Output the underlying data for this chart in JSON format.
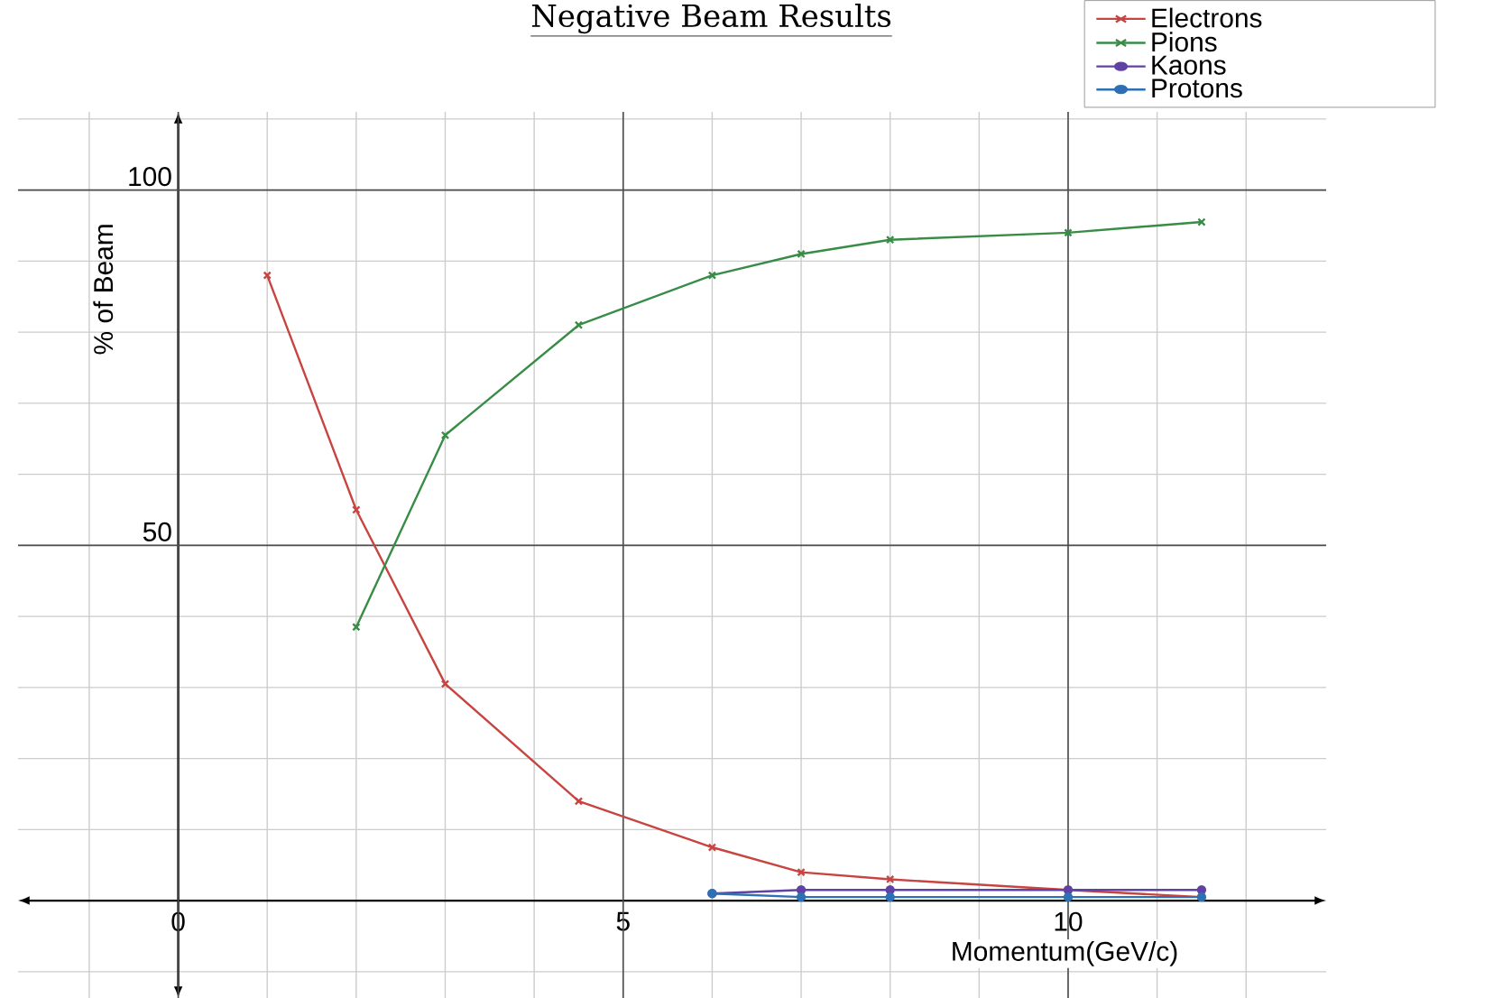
{
  "chart_data": {
    "type": "line",
    "title": "Negative Beam Results",
    "xlabel": "Momentum(GeV/c)",
    "ylabel": "% of Beam",
    "x": [
      1,
      2,
      3,
      4.5,
      6,
      7,
      8,
      10,
      11.5
    ],
    "series": [
      {
        "name": "Electrons",
        "color": "#c74440",
        "marker": "cross",
        "values": [
          88,
          55,
          30.5,
          14,
          7.5,
          4,
          3,
          1.5,
          0.5
        ]
      },
      {
        "name": "Pions",
        "color": "#388c46",
        "marker": "cross",
        "values": [
          null,
          38.5,
          65.5,
          81,
          88,
          91,
          93,
          94,
          95.5
        ]
      },
      {
        "name": "Kaons",
        "color": "#6042a6",
        "marker": "circle",
        "values": [
          null,
          null,
          null,
          null,
          1,
          1.5,
          1.5,
          1.5,
          1.5
        ]
      },
      {
        "name": "Protons",
        "color": "#2d70b3",
        "marker": "circle",
        "values": [
          null,
          null,
          null,
          null,
          1,
          0.5,
          0.5,
          0.5,
          0.5
        ]
      }
    ],
    "xlim": [
      -1.8,
      12.9
    ],
    "ylim": [
      -13.7,
      111
    ],
    "xticks": [
      {
        "value": -1,
        "label": null
      },
      {
        "value": 0,
        "label": "0"
      },
      {
        "value": 1,
        "label": null
      },
      {
        "value": 2,
        "label": null
      },
      {
        "value": 3,
        "label": null
      },
      {
        "value": 4,
        "label": null
      },
      5,
      {
        "value": 6,
        "label": null
      },
      {
        "value": 7,
        "label": null
      },
      {
        "value": 8,
        "label": null
      },
      {
        "value": 9,
        "label": null
      },
      10,
      {
        "value": 11,
        "label": null
      },
      {
        "value": 12,
        "label": null
      }
    ],
    "yticks": [
      {
        "value": -10,
        "label": null
      },
      {
        "value": 10,
        "label": null
      },
      {
        "value": 20,
        "label": null
      },
      {
        "value": 30,
        "label": null
      },
      {
        "value": 40,
        "label": null
      },
      50,
      {
        "value": 60,
        "label": null
      },
      {
        "value": 70,
        "label": null
      },
      {
        "value": 80,
        "label": null
      },
      {
        "value": 90,
        "label": null
      },
      100,
      {
        "value": 110,
        "label": null
      }
    ],
    "grid": true,
    "legend": "top right",
    "line_style": "solid"
  }
}
